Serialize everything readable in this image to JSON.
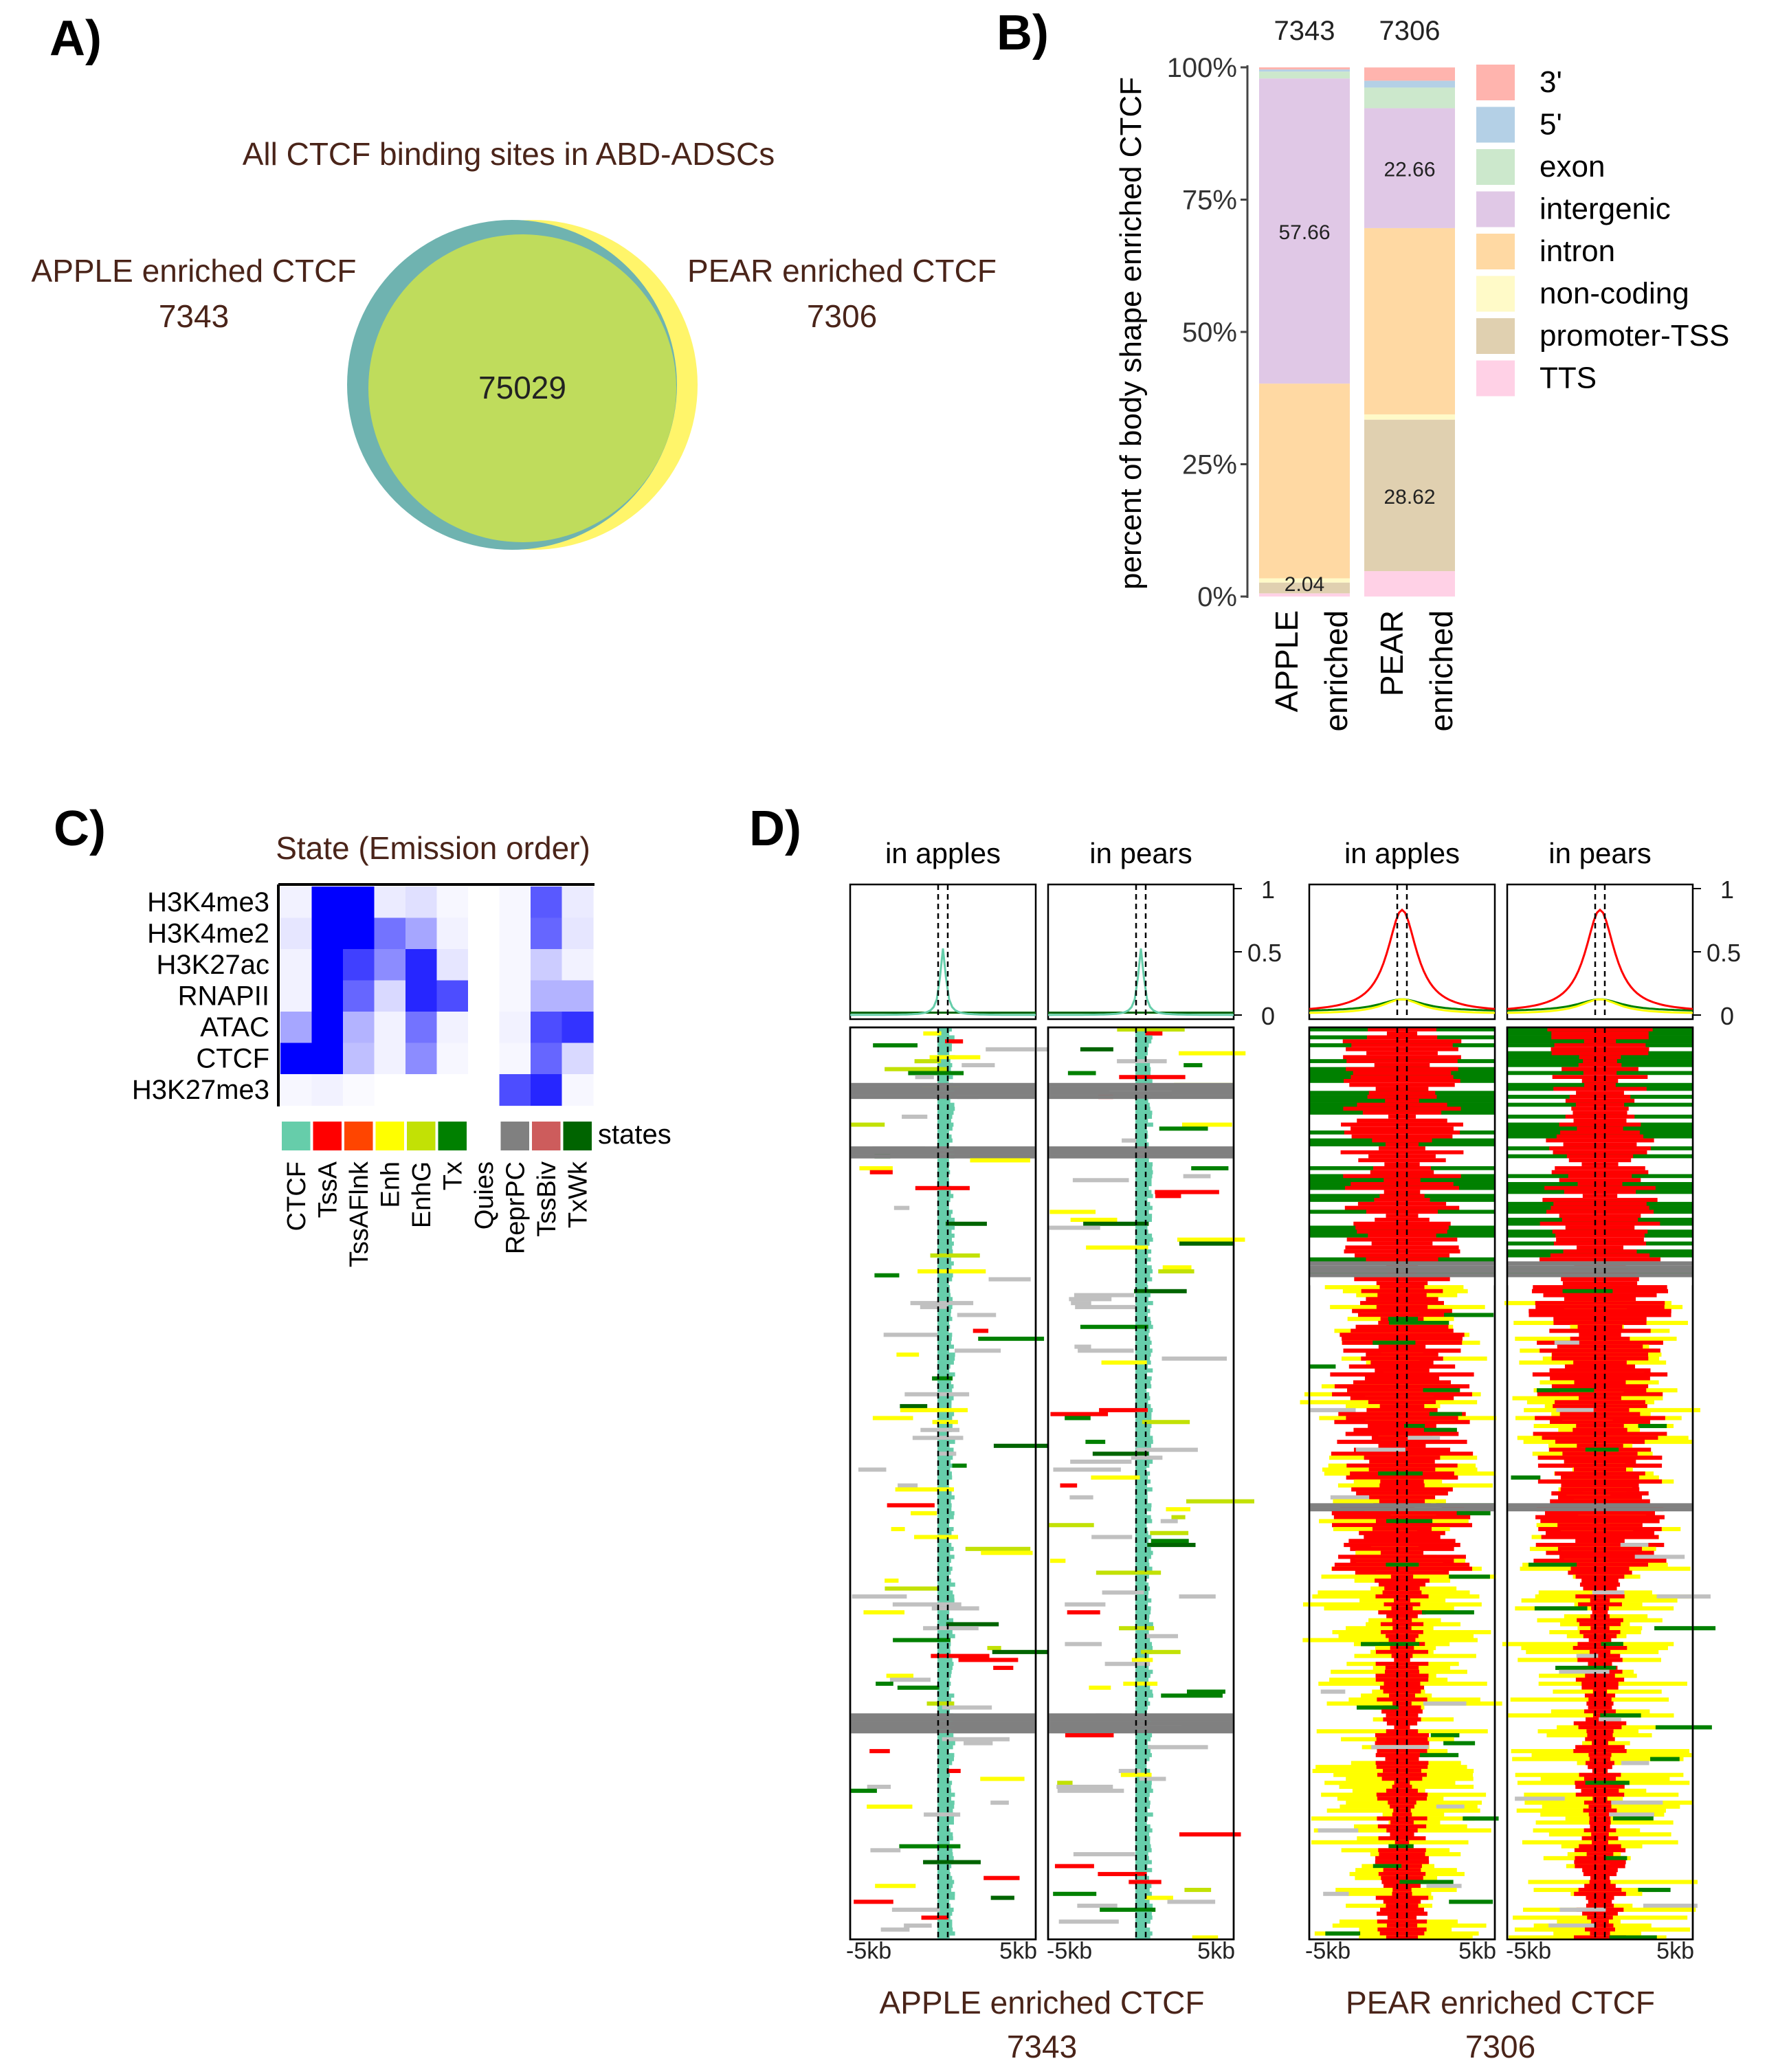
{
  "panels": {
    "a": "A)",
    "b": "B)",
    "c": "C)",
    "d": "D)"
  },
  "venn": {
    "title": "All CTCF binding sites in ABD-ADSCs",
    "left_label": "APPLE enriched CTCF",
    "left_count": "7343",
    "right_label": "PEAR enriched CTCF",
    "right_count": "7306",
    "center_count": "75029",
    "colors": {
      "left": "#6fb3b0",
      "right": "#fff56a",
      "center": "#bfdc5c"
    }
  },
  "heatmap_c": {
    "title": "State (Emission order)",
    "marks": [
      "H3K4me3",
      "H3K4me2",
      "H3K27ac",
      "RNAPII",
      "ATAC",
      "CTCF",
      "H3K27me3"
    ],
    "states": [
      "CTCF",
      "TssA",
      "TssAFlnk",
      "Enh",
      "EnhG",
      "Tx",
      "Quies",
      "ReprPC",
      "TssBiv",
      "TxWk"
    ],
    "state_colors": [
      "#66cdaa",
      "#ff0000",
      "#ff4500",
      "#ffff00",
      "#c2e105",
      "#008000",
      "#ffffff",
      "#808080",
      "#cd5c5c",
      "#006400"
    ],
    "legend_label": "states",
    "values": [
      [
        0.05,
        1.0,
        1.0,
        0.08,
        0.12,
        0.03,
        0.0,
        0.03,
        0.65,
        0.08
      ],
      [
        0.1,
        1.0,
        1.0,
        0.55,
        0.35,
        0.05,
        0.0,
        0.03,
        0.6,
        0.1
      ],
      [
        0.05,
        1.0,
        0.75,
        0.45,
        0.85,
        0.1,
        0.0,
        0.03,
        0.2,
        0.05
      ],
      [
        0.05,
        1.0,
        0.6,
        0.15,
        0.85,
        0.7,
        0.0,
        0.03,
        0.3,
        0.3
      ],
      [
        0.35,
        1.0,
        0.3,
        0.05,
        0.55,
        0.05,
        0.0,
        0.05,
        0.7,
        0.8
      ],
      [
        1.0,
        1.0,
        0.25,
        0.05,
        0.45,
        0.03,
        0.0,
        0.03,
        0.6,
        0.15
      ],
      [
        0.03,
        0.05,
        0.02,
        0.0,
        0.0,
        0.0,
        0.0,
        0.7,
        0.85,
        0.03
      ]
    ]
  },
  "panel_d": {
    "groups": [
      {
        "label": "APPLE enriched CTCF",
        "count": "7343",
        "sub": [
          "in apples",
          "in pears"
        ]
      },
      {
        "label": "PEAR enriched CTCF",
        "count": "7306",
        "sub": [
          "in apples",
          "in pears"
        ]
      }
    ],
    "profile_ticks": [
      "1",
      "0.5",
      "0"
    ],
    "x_left": "-5kb",
    "x_right": "5kb"
  },
  "chart_data": [
    {
      "type": "bar",
      "stacked": true,
      "normalized_percent": true,
      "categories": [
        "APPLE\nenriched",
        "PEAR\nenriched"
      ],
      "category_counts": [
        "7343",
        "7306"
      ],
      "ylabel": "percent of body shape enriched CTCF",
      "ylim": [
        0,
        100
      ],
      "y_ticks": [
        "0%",
        "25%",
        "50%",
        "75%",
        "100%"
      ],
      "legend_position": "right",
      "series": [
        {
          "name": "TTS",
          "color": "#ffd1e6",
          "values": [
            0.6,
            4.8
          ]
        },
        {
          "name": "promoter-TSS",
          "color": "#e0d0b0",
          "values": [
            2.04,
            28.62
          ]
        },
        {
          "name": "non-coding",
          "color": "#fffac8",
          "values": [
            0.8,
            1.0
          ]
        },
        {
          "name": "intron",
          "color": "#ffd9a3",
          "values": [
            36.8,
            35.2
          ]
        },
        {
          "name": "intergenic",
          "color": "#e0c8e6",
          "values": [
            57.66,
            22.66
          ]
        },
        {
          "name": "exon",
          "color": "#cce8cc",
          "values": [
            1.3,
            3.9
          ]
        },
        {
          "name": "5'",
          "color": "#b4d0e6",
          "values": [
            0.4,
            1.3
          ]
        },
        {
          "name": "3'",
          "color": "#ffb4ae",
          "values": [
            0.4,
            2.5
          ]
        }
      ],
      "data_labels": [
        {
          "category": "APPLE\nenriched",
          "series": "intergenic",
          "text": "57.66"
        },
        {
          "category": "APPLE\nenriched",
          "series": "promoter-TSS",
          "text": "2.04"
        },
        {
          "category": "PEAR\nenriched",
          "series": "intergenic",
          "text": "22.66"
        },
        {
          "category": "PEAR\nenriched",
          "series": "promoter-TSS",
          "text": "28.62"
        }
      ]
    },
    {
      "type": "heatmap",
      "title": "State (Emission order)",
      "x": [
        "CTCF",
        "TssA",
        "TssAFlnk",
        "Enh",
        "EnhG",
        "Tx",
        "Quies",
        "ReprPC",
        "TssBiv",
        "TxWk"
      ],
      "y": [
        "H3K4me3",
        "H3K4me2",
        "H3K27ac",
        "RNAPII",
        "ATAC",
        "CTCF",
        "H3K27me3"
      ],
      "color_scale": [
        "#ffffff",
        "#0000ff"
      ]
    },
    {
      "type": "line",
      "x_ticks": [
        "-5kb",
        "5kb"
      ],
      "y_ticks": [
        "0",
        "0.5",
        "1"
      ],
      "ylim": [
        0,
        1
      ]
    }
  ]
}
